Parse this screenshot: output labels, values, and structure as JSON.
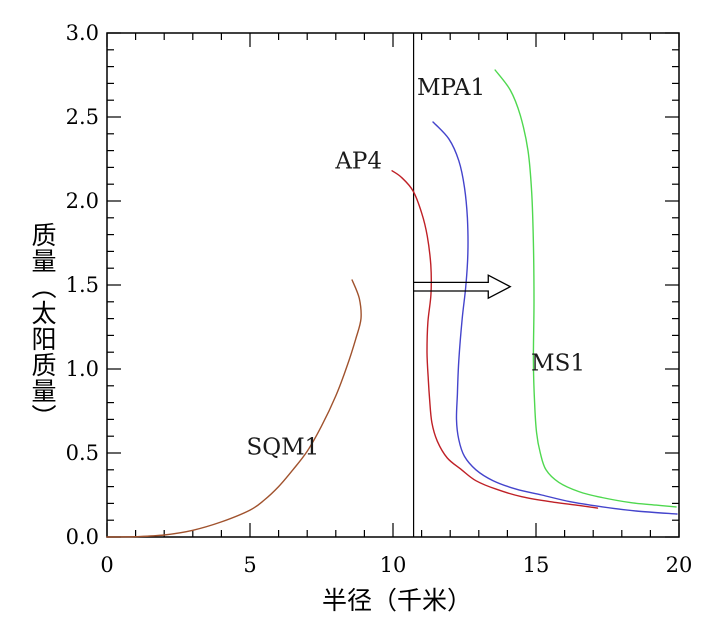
{
  "chart_data": {
    "type": "line",
    "title": "",
    "xlabel": "半径（千米）",
    "ylabel": "质量（太阳质量）",
    "xlim": [
      0,
      20
    ],
    "ylim": [
      0,
      3.0
    ],
    "x_major_ticks": [
      0,
      5,
      10,
      15,
      20
    ],
    "x_tick_labels": [
      "0",
      "5",
      "10",
      "15",
      "20"
    ],
    "x_minor_step": 1,
    "y_major_ticks": [
      0,
      0.5,
      1.0,
      1.5,
      2.0,
      2.5,
      3.0
    ],
    "y_tick_labels": [
      "0.0",
      "0.5",
      "1.0",
      "1.5",
      "2.0",
      "2.5",
      "3.0"
    ],
    "y_minor_step": 0.1,
    "grid": false,
    "legend_position": "inline-labels",
    "background": "#ffffff",
    "axis_color": "#000000",
    "series": [
      {
        "name": "SQM1",
        "color": "#a0522d",
        "label": {
          "text": "SQM1",
          "x": 6.15,
          "y": 0.54
        },
        "points": [
          [
            0,
            0
          ],
          [
            1,
            0.002
          ],
          [
            2,
            0.012
          ],
          [
            3,
            0.04
          ],
          [
            4,
            0.09
          ],
          [
            5,
            0.16
          ],
          [
            5.5,
            0.22
          ],
          [
            6,
            0.3
          ],
          [
            6.5,
            0.4
          ],
          [
            7,
            0.51
          ],
          [
            7.5,
            0.66
          ],
          [
            8,
            0.84
          ],
          [
            8.4,
            1.02
          ],
          [
            8.7,
            1.18
          ],
          [
            8.88,
            1.3
          ],
          [
            8.82,
            1.42
          ],
          [
            8.57,
            1.53
          ]
        ]
      },
      {
        "name": "AP4",
        "color": "#bf2026",
        "label": {
          "text": "AP4",
          "x": 8.8,
          "y": 2.24
        },
        "points": [
          [
            9.97,
            2.18
          ],
          [
            10.3,
            2.14
          ],
          [
            10.7,
            2.06
          ],
          [
            11.0,
            1.93
          ],
          [
            11.2,
            1.79
          ],
          [
            11.32,
            1.62
          ],
          [
            11.33,
            1.45
          ],
          [
            11.22,
            1.28
          ],
          [
            11.19,
            1.1
          ],
          [
            11.23,
            0.95
          ],
          [
            11.28,
            0.82
          ],
          [
            11.36,
            0.68
          ],
          [
            11.55,
            0.57
          ],
          [
            11.9,
            0.47
          ],
          [
            12.4,
            0.4
          ],
          [
            12.9,
            0.335
          ],
          [
            13.6,
            0.285
          ],
          [
            14.5,
            0.24
          ],
          [
            15.5,
            0.21
          ],
          [
            16.5,
            0.188
          ],
          [
            17.15,
            0.172
          ]
        ]
      },
      {
        "name": "MPA1",
        "color": "#4444cc",
        "label": {
          "text": "MPA1",
          "x": 12.03,
          "y": 2.68
        },
        "points": [
          [
            11.4,
            2.47
          ],
          [
            11.95,
            2.37
          ],
          [
            12.3,
            2.24
          ],
          [
            12.5,
            2.08
          ],
          [
            12.6,
            1.9
          ],
          [
            12.62,
            1.7
          ],
          [
            12.55,
            1.5
          ],
          [
            12.42,
            1.3
          ],
          [
            12.3,
            1.05
          ],
          [
            12.25,
            0.85
          ],
          [
            12.22,
            0.7
          ],
          [
            12.3,
            0.58
          ],
          [
            12.5,
            0.48
          ],
          [
            12.9,
            0.4
          ],
          [
            13.5,
            0.335
          ],
          [
            14.3,
            0.285
          ],
          [
            15.2,
            0.25
          ],
          [
            16.2,
            0.21
          ],
          [
            17.3,
            0.18
          ],
          [
            18.5,
            0.155
          ],
          [
            19.93,
            0.137
          ]
        ]
      },
      {
        "name": "MS1",
        "color": "#4fd84f",
        "label": {
          "text": "MS1",
          "x": 15.77,
          "y": 1.04
        },
        "points": [
          [
            13.57,
            2.78
          ],
          [
            14.1,
            2.66
          ],
          [
            14.45,
            2.51
          ],
          [
            14.72,
            2.3
          ],
          [
            14.85,
            2.05
          ],
          [
            14.91,
            1.75
          ],
          [
            14.93,
            1.4
          ],
          [
            14.91,
            1.05
          ],
          [
            14.95,
            0.8
          ],
          [
            15.02,
            0.62
          ],
          [
            15.15,
            0.5
          ],
          [
            15.35,
            0.4
          ],
          [
            15.8,
            0.325
          ],
          [
            16.5,
            0.27
          ],
          [
            17.3,
            0.235
          ],
          [
            18.3,
            0.205
          ],
          [
            19.2,
            0.19
          ],
          [
            19.9,
            0.179
          ]
        ]
      }
    ],
    "annotations": {
      "vline": {
        "x": 10.72,
        "color": "#000000"
      },
      "arrow": {
        "x_from": 10.72,
        "x_to": 14.1,
        "y": 1.49,
        "style": "open-outline",
        "color": "#000000"
      }
    }
  }
}
